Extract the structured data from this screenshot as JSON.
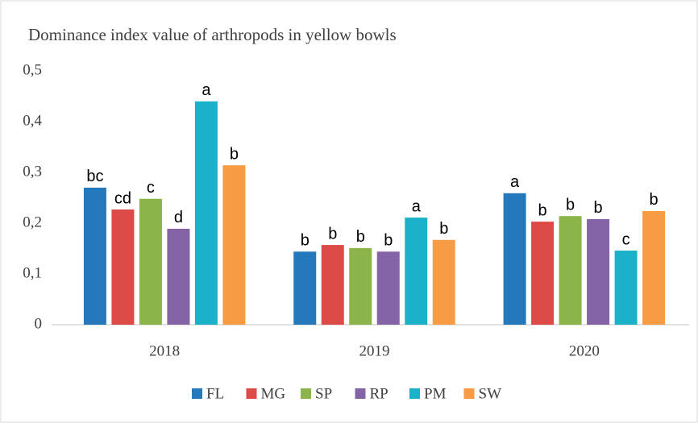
{
  "chart_data": {
    "type": "bar",
    "title": "Dominance index value of arthropods in yellow bowls",
    "categories": [
      "2018",
      "2019",
      "2020"
    ],
    "series": [
      {
        "name": "FL",
        "color": "#2479bd",
        "values": [
          0.27,
          0.144,
          0.259
        ],
        "significance": [
          "bc",
          "b",
          "a"
        ]
      },
      {
        "name": "MG",
        "color": "#dc4b48",
        "values": [
          0.227,
          0.157,
          0.203
        ],
        "significance": [
          "cd",
          "b",
          "b"
        ]
      },
      {
        "name": "SP",
        "color": "#8bb44a",
        "values": [
          0.248,
          0.151,
          0.214
        ],
        "significance": [
          "c",
          "b",
          "b"
        ]
      },
      {
        "name": "RP",
        "color": "#8464a6",
        "values": [
          0.189,
          0.144,
          0.208
        ],
        "significance": [
          "d",
          "b",
          "b"
        ]
      },
      {
        "name": "PM",
        "color": "#19b2c8",
        "values": [
          0.44,
          0.211,
          0.146
        ],
        "significance": [
          "a",
          "a",
          "c"
        ]
      },
      {
        "name": "SW",
        "color": "#f89b45",
        "values": [
          0.314,
          0.167,
          0.224
        ],
        "significance": [
          "b",
          "b",
          "b"
        ]
      }
    ],
    "ylim": [
      0,
      0.5
    ],
    "yticks": [
      0,
      {
        "value": 0.1,
        "label": "0,1"
      },
      {
        "value": 0.2,
        "label": "0,2"
      },
      {
        "value": 0.3,
        "label": "0,3"
      },
      {
        "value": 0.4,
        "label": "0,4"
      },
      {
        "value": 0.5,
        "label": "0,5"
      }
    ],
    "grid": false,
    "legend": "bottom"
  }
}
